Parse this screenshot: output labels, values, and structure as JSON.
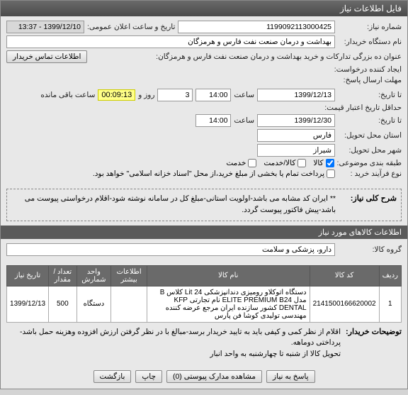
{
  "window": {
    "title": "فایل اطلاعات نیاز"
  },
  "top": {
    "need_no_label": "شماره نیاز:",
    "need_no": "1199092113000425",
    "announce_label": "تاریخ و ساعت اعلان عمومی:",
    "announce_value": "1399/12/10 - 13:37",
    "buyer_label": "نام دستگاه خریدار:",
    "buyer": "بهداشت و درمان صنعت نفت فارس و هرمزگان",
    "proc_title_label": "عنوان ده بزرگی تدارکات و خرید بهداشت و درمان صنعت نفت فارس و هرمزگان:",
    "contact_btn": "اطلاعات تماس خریدار",
    "creator_label": "ایجاد کننده درخواست:"
  },
  "dates": {
    "deadline_send_label": "مهلت ارسال پاسخ:",
    "to_label": "تا تاریخ:",
    "date1": "1399/12/13",
    "time_label": "ساعت",
    "time1": "14:00",
    "days_label": "روز و",
    "days": "3",
    "timer": "00:09:13",
    "remain_label": "ساعت باقی مانده",
    "validity_label": "حداقل تاریخ اعتبار قیمت:",
    "date2": "1399/12/30",
    "time2": "14:00",
    "delivery_state_label": "استان محل تحویل:",
    "delivery_state": "فارس",
    "delivery_city_label": "شهر محل تحویل:",
    "delivery_city": "شیراز"
  },
  "budget": {
    "label": "طبقه بندی موضوعی:",
    "cb_goods": "کالا",
    "cb_service": "کالا/خدمت",
    "cb_svc": "خدمت",
    "process_label": "نوع فرآیند خرید :",
    "note": "پرداخت تمام یا بخشی از مبلغ خرید،از محل \"اسناد خزانه اسلامی\" خواهد بود."
  },
  "desc": {
    "label": "شرح کلی نیاز:",
    "text": "** ایران کد مشابه می باشد-اولویت استانی-مبلغ کل در سامانه نوشته شود-اقلام درخواستی پیوست می باشد-پیش فاکتور پیوست گردد."
  },
  "items_header": "اطلاعات کالاهای مورد نیاز",
  "group": {
    "label": "گروه کالا:",
    "value": "دارو، پزشکی و سلامت"
  },
  "table": {
    "cols": [
      "ردیف",
      "کد کالا",
      "نام کالا",
      "اطلاعات بیشتر",
      "واحد شمارش",
      "تعداد / مقدار",
      "تاریخ نیاز"
    ],
    "rows": [
      {
        "n": "1",
        "code": "2141500166620002",
        "name": "دستگاه اتوکلاو رومیزی دندانپزشکی 24 Lit کلاس B مدل ELITE PREMIUM B24 نام تجارتی KFP DENTAL کشور سازنده ایران مرجع عرضه کننده مهندسی تولیدی کوشا فن پارس",
        "unit": "دستگاه",
        "qty": "500",
        "date": "1399/12/13"
      }
    ]
  },
  "buyer_note": {
    "label": "توضیحات خریدار:",
    "text": "اقلام از نظر کمی و کیفی باید به تایید خریدار برسد-مبالغ با در نظر گرفتن ارزش افزوده وهزینه حمل باشد-پرداختی دوماهه.\nتحویل کالا از شنبه تا چهارشنبه به واحد انبار"
  },
  "footer": {
    "answer": "پاسخ به نیاز",
    "view_docs": "مشاهده مدارک پیوستی (0)",
    "print": "چاپ",
    "back": "بازگشت"
  }
}
